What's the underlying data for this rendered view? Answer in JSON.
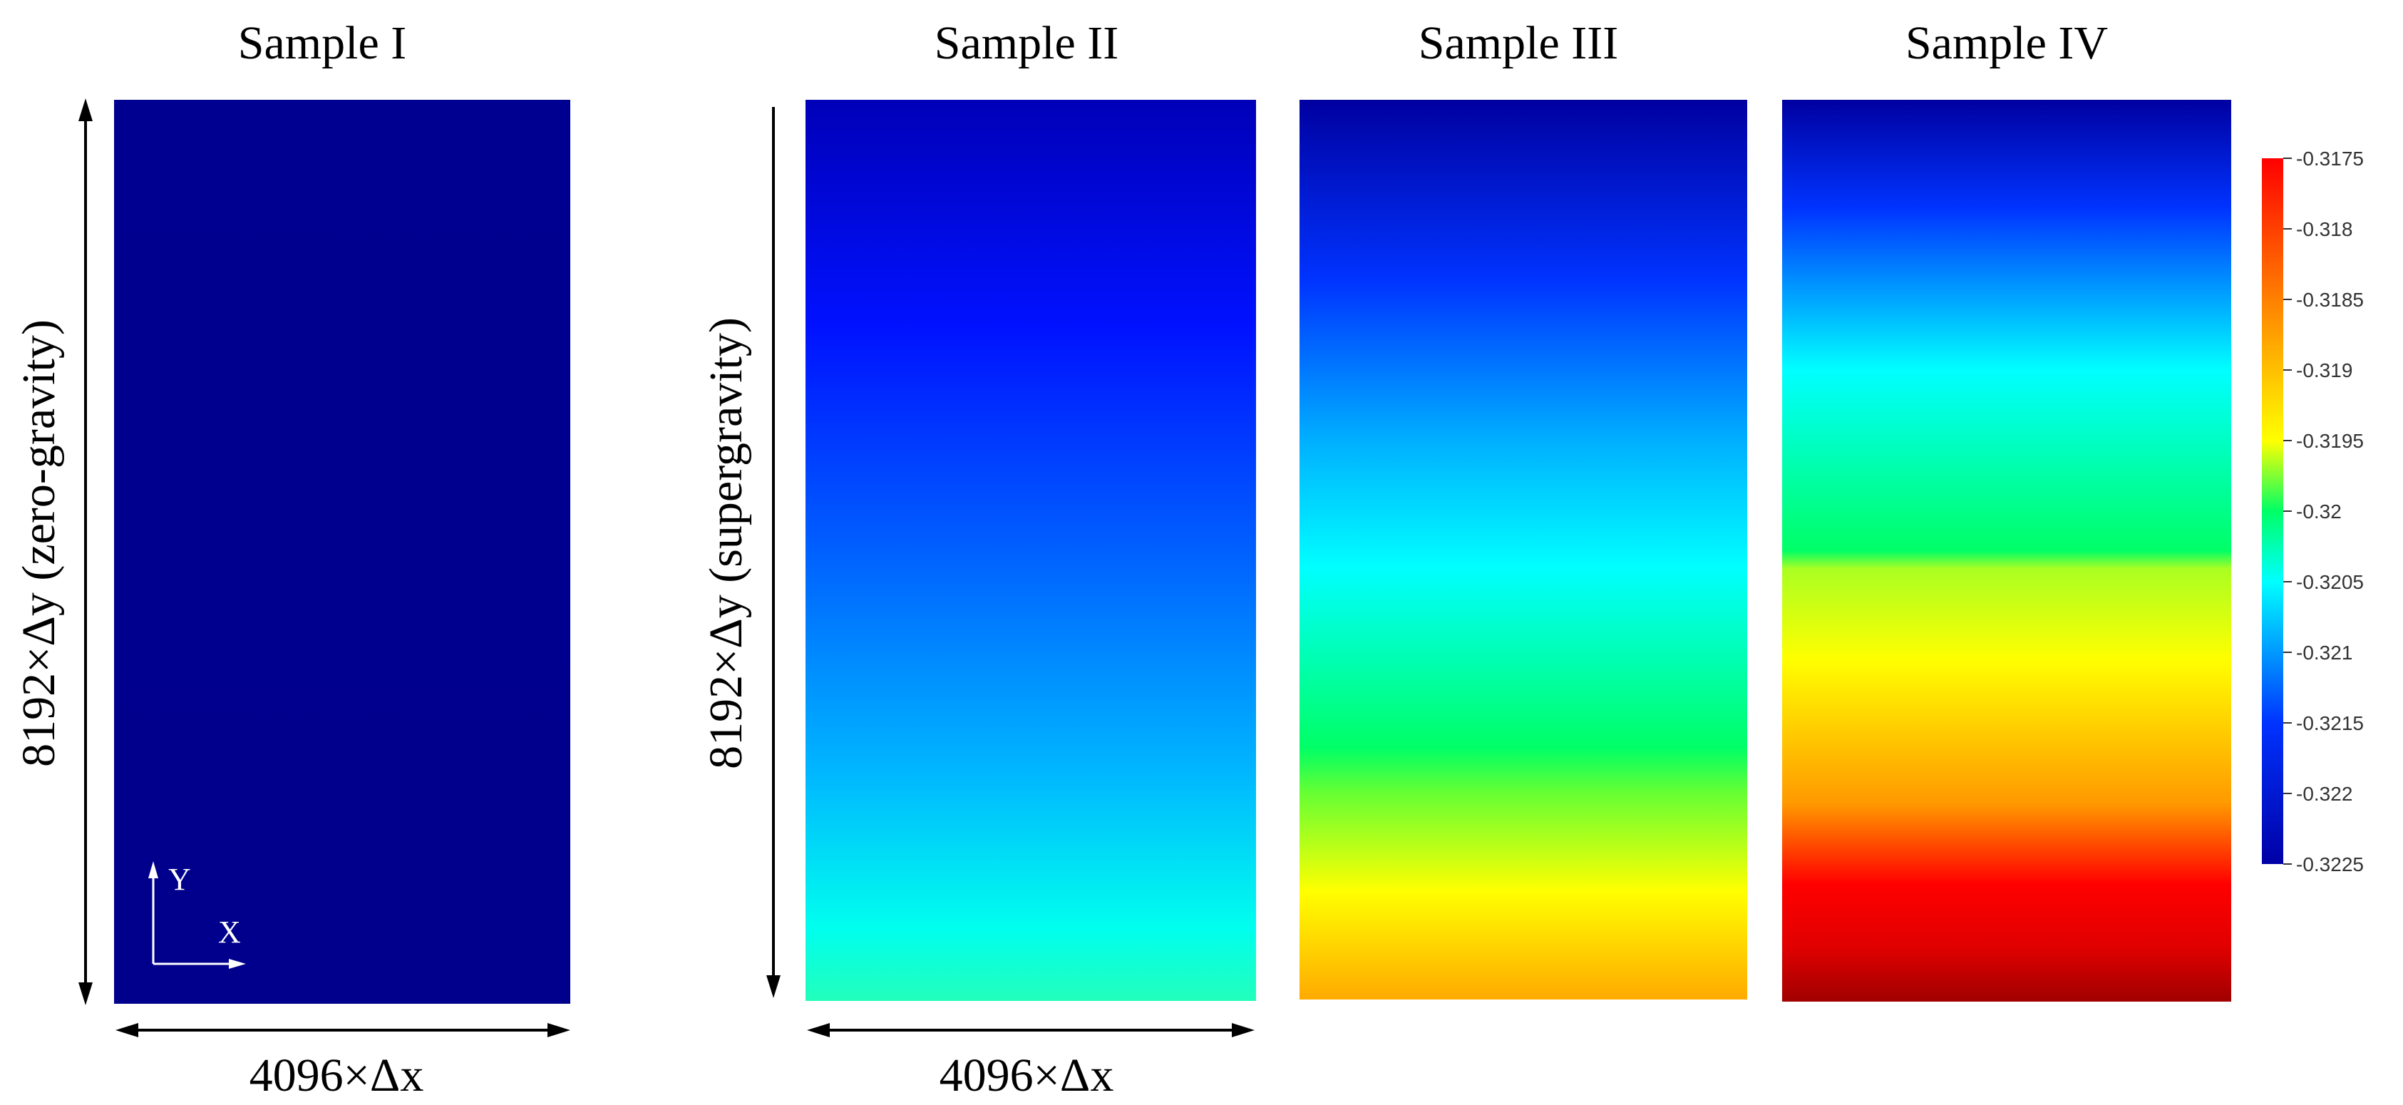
{
  "samples": [
    {
      "title": "Sample I"
    },
    {
      "title": "Sample II"
    },
    {
      "title": "Sample III"
    },
    {
      "title": "Sample IV"
    }
  ],
  "dimensions": {
    "width_label_1": "4096×Δx",
    "width_label_2": "4096×Δx",
    "height_label_1": "8192×Δy (zero-gravity)",
    "height_label_2": "8192×Δy (supergravity)"
  },
  "axes": {
    "x": "X",
    "y": "Y"
  },
  "colorbar": {
    "min": -0.3225,
    "max": -0.3175,
    "ticks": [
      "-0.3175",
      "-0.318",
      "-0.3185",
      "-0.319",
      "-0.3195",
      "-0.32",
      "-0.3205",
      "-0.321",
      "-0.3215",
      "-0.322",
      "-0.3225"
    ],
    "colors": [
      "#0000a6",
      "#0033ff",
      "#00ffff",
      "#00ff66",
      "#ffff00",
      "#ff8000",
      "#ff0000"
    ]
  }
}
